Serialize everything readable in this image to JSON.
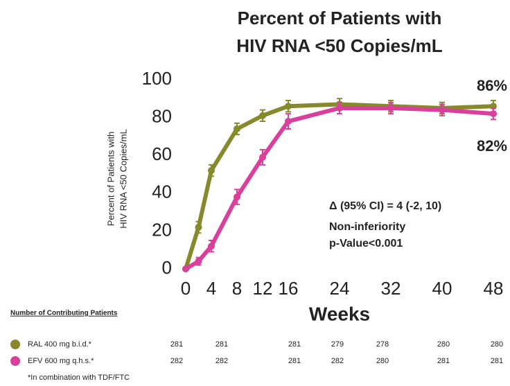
{
  "chart_data": {
    "type": "line",
    "title": [
      "Percent of Patients with",
      "HIV RNA <50 Copies/mL"
    ],
    "y_label": [
      "Percent of Patients with",
      "HIV RNA <50 Copies/mL"
    ],
    "x_label": "Weeks",
    "x": [
      0,
      2,
      4,
      8,
      12,
      16,
      24,
      32,
      40,
      48
    ],
    "xlim": [
      0,
      48
    ],
    "xticks": [
      0,
      4,
      8,
      12,
      16,
      24,
      32,
      40,
      48
    ],
    "ylim": [
      0,
      100
    ],
    "yticks": [
      0,
      20,
      40,
      60,
      80,
      100
    ],
    "series": [
      {
        "name": "RAL 400 mg b.i.d.*",
        "color": "#878a2c",
        "values": [
          0,
          22,
          52,
          74,
          81,
          86,
          87,
          86,
          85,
          86
        ],
        "errors": [
          0,
          3,
          3,
          3,
          3,
          3,
          3,
          3,
          3,
          3
        ],
        "end_label": "86%"
      },
      {
        "name": "EFV 600 mg q.h.s.*",
        "color": "#d8409c",
        "values": [
          0,
          4,
          12,
          38,
          59,
          78,
          85,
          85,
          84,
          82
        ],
        "errors": [
          0,
          2,
          3,
          4,
          4,
          4,
          3,
          3,
          3,
          3
        ],
        "end_label": "82%"
      }
    ],
    "annotations": [
      "Δ (95% CI) = 4 (-2, 10)",
      "Non-inferiority",
      "p-Value<0.001"
    ]
  },
  "table": {
    "title": "Number of Contributing Patients",
    "rows": [
      [
        281,
        281,
        281,
        279,
        278,
        280,
        280
      ],
      [
        282,
        282,
        281,
        282,
        280,
        281,
        281
      ]
    ],
    "footnote": "*In combination with TDF/FTC"
  }
}
